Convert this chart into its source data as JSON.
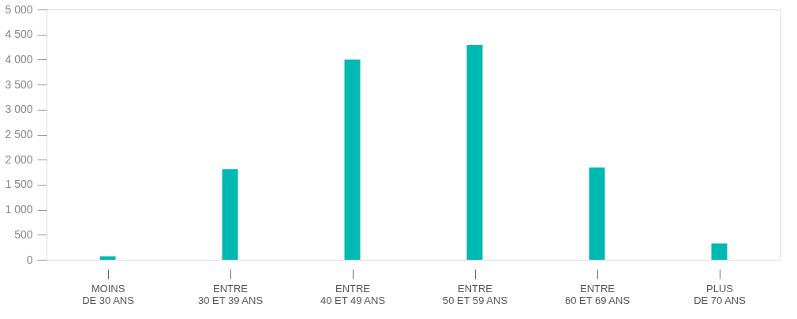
{
  "chart_data": {
    "type": "bar",
    "categories": [
      "MOINS\nDE 30 ANS",
      "ENTRE\n30 ET 39 ANS",
      "ENTRE\n40 ET 49 ANS",
      "ENTRE\n50 ET 59 ANS",
      "ENTRE\n60 ET 69 ANS",
      "PLUS\nDE 70 ANS"
    ],
    "values": [
      70,
      1810,
      4000,
      4290,
      1840,
      325
    ],
    "color": "#00b9b2",
    "ylim": [
      0,
      5000
    ],
    "yticks": [
      {
        "value": 0,
        "label": "0"
      },
      {
        "value": 500,
        "label": "500"
      },
      {
        "value": 1000,
        "label": "1 000"
      },
      {
        "value": 1500,
        "label": "1 500"
      },
      {
        "value": 2000,
        "label": "2 000"
      },
      {
        "value": 2500,
        "label": "2 500"
      },
      {
        "value": 3000,
        "label": "3 000"
      },
      {
        "value": 3500,
        "label": "3 500"
      },
      {
        "value": 4000,
        "label": "4 000"
      },
      {
        "value": 4500,
        "label": "4 500"
      },
      {
        "value": 5000,
        "label": "5 000"
      }
    ],
    "grid": false,
    "legend": false
  }
}
